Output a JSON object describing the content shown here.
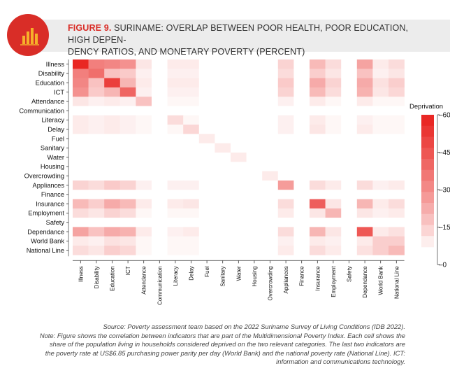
{
  "figure": {
    "number": "FIGURE 9.",
    "title": "SURINAME: OVERLAP BETWEEN POOR HEALTH, POOR EDUCATION, HIGH DEPENDENCY RATIOS, AND MONETARY POVERTY (PERCENT)",
    "title_line1": "SURINAME: OVERLAP BETWEEN POOR HEALTH, POOR EDUCATION, HIGH DEPEN-",
    "title_line2": "DENCY RATIOS, AND MONETARY POVERTY (PERCENT)",
    "icon": "bar-chart-icon"
  },
  "notes": {
    "source": "Source: Poverty assessment team based on the 2022 Suriname Survey of Living Conditions (IDB 2022).",
    "note_line1": "Note: Figure shows the correlation between indicators that are part of the Multidimensional Poverty Index. Each cell shows the",
    "note_line2": "share of the population living in households considered deprived on the two relevant categories. The last two indicators are",
    "note_line3": "the poverty rate at US$6.85 purchasing power parity per day (World Bank) and the national poverty rate (National Line). ICT:",
    "note_line4": "information and communications technology."
  },
  "colors": {
    "accent": "#d92d27",
    "header_band": "#ececec",
    "scale_low": "#ffffff",
    "scale_high": "#e8211d"
  },
  "chart_data": {
    "type": "heatmap",
    "indicators": [
      "Illness",
      "Disability",
      "Education",
      "ICT",
      "Attendance",
      "Communication",
      "Literacy",
      "Delay",
      "Fuel",
      "Sanitary",
      "Water",
      "Housing",
      "Overcrowding",
      "Appliances",
      "Finance",
      "Insurance",
      "Employment",
      "Safety",
      "Dependance",
      "World Bank",
      "National Line"
    ],
    "values": [
      [
        58,
        30,
        28,
        25,
        4,
        0,
        3,
        3,
        0,
        0,
        0,
        0,
        0,
        8,
        0,
        14,
        6,
        0,
        20,
        3,
        6
      ],
      [
        30,
        35,
        12,
        10,
        2,
        0,
        2,
        2,
        0,
        0,
        0,
        0,
        0,
        6,
        0,
        9,
        4,
        0,
        12,
        2,
        4
      ],
      [
        28,
        12,
        50,
        15,
        3,
        0,
        3,
        3,
        0,
        0,
        0,
        0,
        0,
        10,
        0,
        18,
        8,
        0,
        18,
        5,
        9
      ],
      [
        25,
        10,
        15,
        38,
        2,
        0,
        2,
        2,
        0,
        0,
        0,
        0,
        0,
        8,
        0,
        14,
        6,
        0,
        16,
        4,
        7
      ],
      [
        4,
        2,
        3,
        2,
        12,
        0,
        1,
        1,
        0,
        0,
        0,
        0,
        0,
        2,
        0,
        3,
        1,
        0,
        3,
        1,
        1
      ],
      [
        0,
        0,
        0,
        0,
        0,
        0,
        0,
        0,
        0,
        0,
        0,
        0,
        0,
        0,
        0,
        0,
        0,
        0,
        0,
        0,
        0
      ],
      [
        3,
        2,
        3,
        2,
        1,
        0,
        6,
        1,
        0,
        0,
        0,
        0,
        0,
        2,
        0,
        3,
        1,
        0,
        2,
        1,
        1
      ],
      [
        3,
        2,
        3,
        2,
        1,
        0,
        1,
        7,
        0,
        0,
        0,
        0,
        0,
        2,
        0,
        4,
        1,
        0,
        3,
        1,
        1
      ],
      [
        0,
        0,
        0,
        0,
        0,
        0,
        0,
        0,
        3,
        0,
        0,
        0,
        0,
        0,
        0,
        0,
        0,
        0,
        0,
        0,
        0
      ],
      [
        0,
        0,
        0,
        0,
        0,
        0,
        0,
        0,
        0,
        3,
        0,
        0,
        0,
        0,
        0,
        0,
        0,
        0,
        0,
        0,
        0
      ],
      [
        0,
        0,
        0,
        0,
        0,
        0,
        0,
        0,
        0,
        0,
        3,
        0,
        0,
        0,
        0,
        0,
        0,
        0,
        0,
        0,
        0
      ],
      [
        0,
        0,
        0,
        0,
        0,
        0,
        0,
        0,
        0,
        0,
        0,
        0,
        0,
        0,
        0,
        0,
        0,
        0,
        0,
        0,
        0
      ],
      [
        0,
        0,
        0,
        0,
        0,
        0,
        0,
        0,
        0,
        0,
        0,
        0,
        3,
        0,
        0,
        0,
        0,
        0,
        0,
        0,
        0
      ],
      [
        8,
        6,
        10,
        8,
        2,
        0,
        2,
        2,
        0,
        0,
        0,
        0,
        0,
        22,
        0,
        6,
        3,
        0,
        6,
        2,
        3
      ],
      [
        0,
        0,
        0,
        0,
        0,
        0,
        0,
        0,
        0,
        0,
        0,
        0,
        0,
        0,
        0,
        0,
        0,
        0,
        0,
        0,
        0
      ],
      [
        14,
        9,
        18,
        14,
        3,
        0,
        3,
        4,
        0,
        0,
        0,
        0,
        0,
        6,
        0,
        40,
        4,
        0,
        15,
        3,
        6
      ],
      [
        6,
        4,
        8,
        6,
        1,
        0,
        1,
        1,
        0,
        0,
        0,
        0,
        0,
        3,
        0,
        4,
        15,
        0,
        4,
        2,
        3
      ],
      [
        0,
        0,
        0,
        0,
        0,
        0,
        0,
        0,
        0,
        0,
        0,
        0,
        0,
        0,
        0,
        0,
        0,
        0,
        0,
        0,
        0
      ],
      [
        20,
        12,
        18,
        16,
        3,
        0,
        2,
        3,
        0,
        0,
        0,
        0,
        0,
        6,
        0,
        15,
        4,
        0,
        42,
        3,
        5
      ],
      [
        3,
        2,
        5,
        4,
        1,
        0,
        1,
        1,
        0,
        0,
        0,
        0,
        0,
        2,
        0,
        3,
        2,
        0,
        3,
        9,
        9
      ],
      [
        6,
        4,
        9,
        7,
        1,
        0,
        1,
        1,
        0,
        0,
        0,
        0,
        0,
        3,
        0,
        6,
        3,
        0,
        5,
        9,
        14
      ]
    ],
    "colorbar": {
      "title": "Deprivation",
      "min": 0,
      "max": 60,
      "ticks": [
        0,
        15,
        30,
        45,
        60
      ],
      "tick_labels": [
        "0",
        "15",
        "30",
        "45",
        "60"
      ]
    }
  }
}
